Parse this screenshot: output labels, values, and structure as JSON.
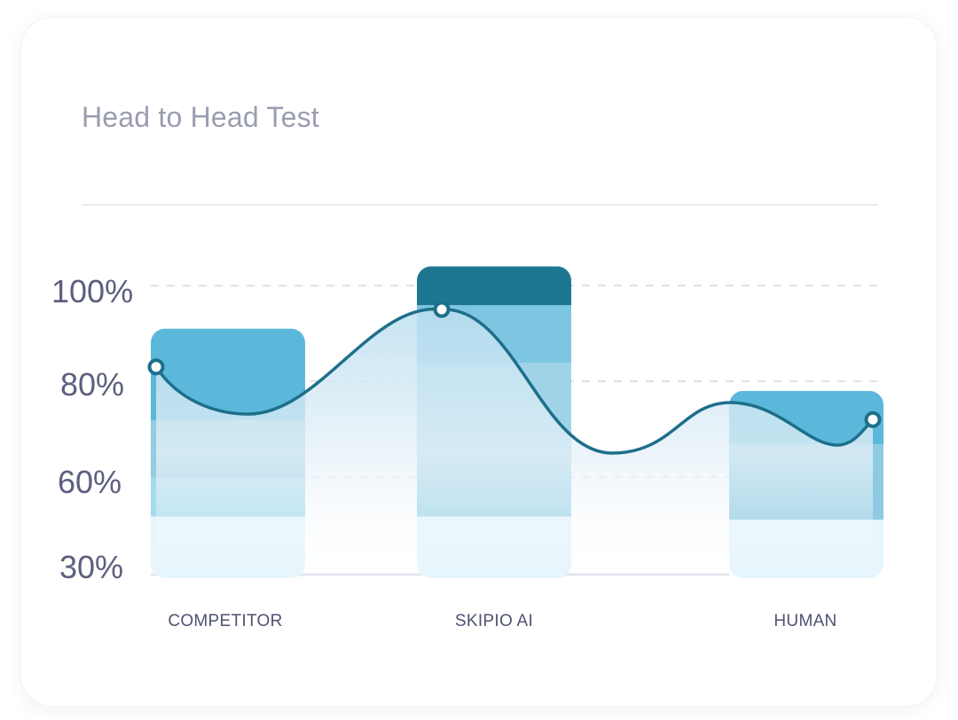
{
  "header": {
    "title": "Head to Head Test"
  },
  "chart_data": {
    "type": "bar",
    "title": "Head to Head Test",
    "categories": [
      "COMPETITOR",
      "SKIPIO AI",
      "HUMAN"
    ],
    "y_ticks": [
      {
        "label": "100%",
        "value": 100
      },
      {
        "label": "80%",
        "value": 80
      },
      {
        "label": "60%",
        "value": 60
      },
      {
        "label": "30%",
        "value": 30
      }
    ],
    "bar_values": [
      91,
      104,
      78
    ],
    "bar_segments": [
      [
        48,
        60,
        72,
        84,
        91
      ],
      [
        48,
        84,
        96,
        104
      ],
      [
        47,
        67,
        78
      ]
    ],
    "line_values": [
      83,
      95,
      72
    ],
    "grid": "dashed",
    "legend": "none",
    "colors": {
      "band_light": "#e6f6fc",
      "band_mid": "#a6dbee",
      "band_deep": "#86c8e0",
      "band_top": "#5bb8da",
      "band_peak": "#1d7792",
      "line": "#1d6f8a",
      "area": "#c5e3f2",
      "grid": "#dfe1ea",
      "axis": "#e4e5ec"
    }
  }
}
